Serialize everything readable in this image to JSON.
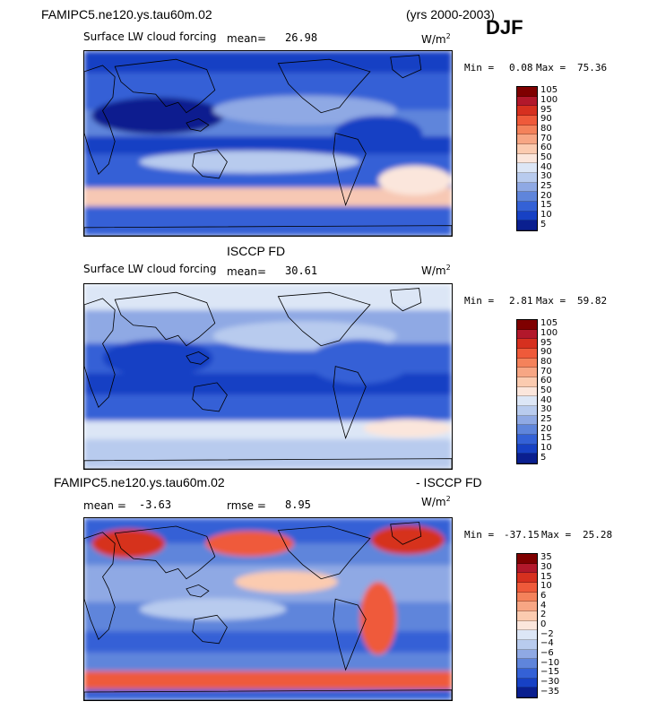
{
  "header": {
    "case_name": "FAMIPC5.ne120.ys.tau60m.02",
    "years": "(yrs 2000-2003)",
    "season": "DJF"
  },
  "chart_data": [
    {
      "type": "heatmap",
      "title": "",
      "field_label": "Surface LW cloud forcing",
      "units": "W/m²",
      "mean_label": "mean=",
      "mean_value": "26.98",
      "min_label": "Min =",
      "min_value": "0.08",
      "max_label": "Max =",
      "max_value": "75.36",
      "colorbar_levels": [
        "105",
        "100",
        "95",
        "90",
        "80",
        "70",
        "60",
        "50",
        "40",
        "30",
        "25",
        "20",
        "15",
        "10",
        "5"
      ],
      "colorbar_colors": [
        "#7f0000",
        "#b2182b",
        "#d6301f",
        "#ef5a3a",
        "#f4825b",
        "#f7a684",
        "#fbcbb0",
        "#fbe6dc",
        "#dce6f6",
        "#b8cbee",
        "#8fa9e4",
        "#5f85db",
        "#3461d6",
        "#1741c4",
        "#0a1f8f"
      ]
    },
    {
      "type": "heatmap",
      "title": "ISCCP FD",
      "field_label": "Surface LW cloud forcing",
      "units": "W/m²",
      "mean_label": "mean=",
      "mean_value": "30.61",
      "min_label": "Min =",
      "min_value": "2.81",
      "max_label": "Max =",
      "max_value": "59.82",
      "colorbar_levels": [
        "105",
        "100",
        "95",
        "90",
        "80",
        "70",
        "60",
        "50",
        "40",
        "30",
        "25",
        "20",
        "15",
        "10",
        "5"
      ],
      "colorbar_colors": [
        "#7f0000",
        "#b2182b",
        "#d6301f",
        "#ef5a3a",
        "#f4825b",
        "#f7a684",
        "#fbcbb0",
        "#fbe6dc",
        "#dce6f6",
        "#b8cbee",
        "#8fa9e4",
        "#5f85db",
        "#3461d6",
        "#1741c4",
        "#0a1f8f"
      ]
    },
    {
      "type": "heatmap",
      "title_left": "FAMIPC5.ne120.ys.tau60m.02",
      "title_right": "- ISCCP FD",
      "units": "W/m²",
      "mean_label": "mean =",
      "mean_value": "-3.63",
      "rmse_label": "rmse =",
      "rmse_value": "8.95",
      "min_label": "Min =",
      "min_value": "-37.15",
      "max_label": "Max =",
      "max_value": "25.28",
      "colorbar_levels": [
        "35",
        "30",
        "15",
        "10",
        "6",
        "4",
        "2",
        "0",
        "−2",
        "−4",
        "−6",
        "−10",
        "−15",
        "−30",
        "−35"
      ],
      "colorbar_colors": [
        "#7f0000",
        "#b2182b",
        "#d6301f",
        "#ef5a3a",
        "#f4825b",
        "#f7a684",
        "#fbcbb0",
        "#fbe6dc",
        "#dce6f6",
        "#b8cbee",
        "#8fa9e4",
        "#5f85db",
        "#3461d6",
        "#1741c4",
        "#0a1f8f"
      ]
    }
  ]
}
